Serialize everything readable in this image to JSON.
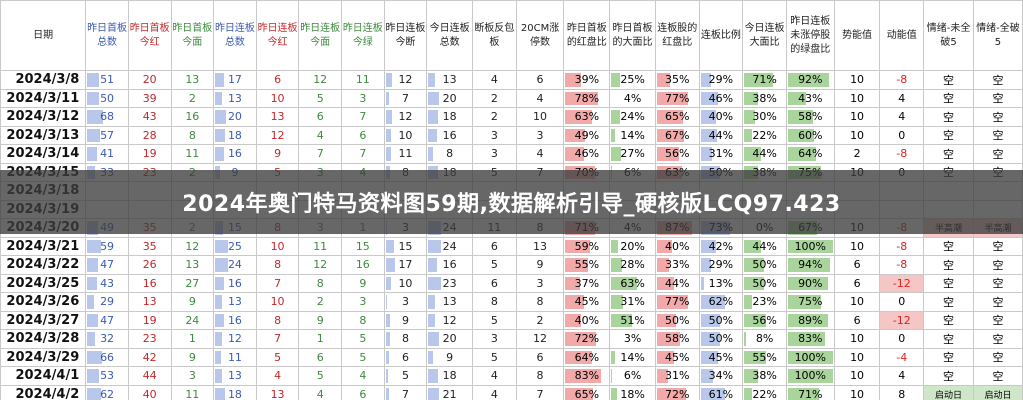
{
  "banner": {
    "title": "2024年奥门特马资料图59期,数据解析引导_硬核版LCQ97.423"
  },
  "colors": {
    "blue_text": "#3b5bb0",
    "red_text": "#c0282a",
    "green_text": "#3e8a3e",
    "blue_bar": "#b9c8ea",
    "red_bar": "#f2a9a9",
    "green_bar": "#a9d49c",
    "banner_bg": "#3c3c3c"
  },
  "headers": [
    "日期",
    "昨日首板总数",
    "昨日首板今红",
    "昨日首板今面",
    "昨日连板总数",
    "昨日连板今红",
    "昨日连板今面",
    "昨日连板今绿",
    "昨日连板今断",
    "今日连板总数",
    "断板反包板",
    "20CM涨停数",
    "昨日首板的红盘比",
    "昨日首板的大面比",
    "连板股的红盘比",
    "连板比例",
    "今日连板大面比",
    "昨日连板未涨停股的绿盘比",
    "势能值",
    "动能值",
    "情绪-未全破5",
    "情绪-全破5"
  ],
  "rows": [
    {
      "date": "2024/3/8",
      "v": [
        "51",
        "20",
        "13",
        "17",
        "6",
        "12",
        "11",
        "12",
        "13",
        "4",
        "6",
        "39%",
        "25%",
        "35%",
        "29%",
        "71%",
        "92%",
        "10",
        "-8",
        "空",
        "空"
      ],
      "p": [
        0.39,
        0.25,
        0.35,
        0.29,
        0.71,
        0.92
      ]
    },
    {
      "date": "2024/3/11",
      "v": [
        "50",
        "39",
        "2",
        "13",
        "10",
        "5",
        "3",
        "7",
        "20",
        "2",
        "4",
        "78%",
        "4%",
        "77%",
        "46%",
        "38%",
        "43%",
        "10",
        "4",
        "空",
        "空"
      ],
      "p": [
        0.78,
        0.04,
        0.77,
        0.46,
        0.38,
        0.43
      ]
    },
    {
      "date": "2024/3/12",
      "v": [
        "68",
        "43",
        "16",
        "20",
        "13",
        "6",
        "7",
        "12",
        "18",
        "2",
        "10",
        "63%",
        "24%",
        "65%",
        "40%",
        "30%",
        "58%",
        "10",
        "4",
        "空",
        "空"
      ],
      "p": [
        0.63,
        0.24,
        0.65,
        0.4,
        0.3,
        0.58
      ]
    },
    {
      "date": "2024/3/13",
      "v": [
        "57",
        "28",
        "8",
        "18",
        "12",
        "4",
        "6",
        "10",
        "16",
        "3",
        "3",
        "49%",
        "14%",
        "67%",
        "44%",
        "22%",
        "60%",
        "10",
        "0",
        "空",
        "空"
      ],
      "p": [
        0.49,
        0.14,
        0.67,
        0.44,
        0.22,
        0.6
      ]
    },
    {
      "date": "2024/3/14",
      "v": [
        "41",
        "19",
        "11",
        "16",
        "9",
        "7",
        "7",
        "11",
        "8",
        "3",
        "4",
        "46%",
        "27%",
        "56%",
        "31%",
        "44%",
        "64%",
        "2",
        "-8",
        "空",
        "空"
      ],
      "p": [
        0.46,
        0.27,
        0.56,
        0.31,
        0.44,
        0.64
      ]
    },
    {
      "date": "2024/3/15",
      "v": [
        "33",
        "23",
        "2",
        "9",
        "5",
        "3",
        "4",
        "8",
        "18",
        "5",
        "7",
        "70%",
        "6%",
        "63%",
        "50%",
        "38%",
        "75%",
        "10",
        "0",
        "空",
        "空"
      ],
      "p": [
        0.7,
        0.06,
        0.63,
        0.5,
        0.38,
        0.75
      ]
    },
    {
      "date": "2024/3/18",
      "v": [
        "",
        "",
        "",
        "",
        "",
        "",
        "",
        "",
        "",
        "",
        "",
        "",
        "",
        "",
        "",
        "",
        "",
        "",
        "",
        "",
        ""
      ],
      "p": [
        0,
        0,
        0,
        0,
        0,
        0
      ]
    },
    {
      "date": "2024/3/19",
      "v": [
        "",
        "",
        "",
        "",
        "",
        "",
        "",
        "",
        "",
        "",
        "",
        "",
        "",
        "",
        "",
        "",
        "",
        "",
        "",
        "",
        ""
      ],
      "p": [
        0,
        0,
        0,
        0,
        0,
        0
      ]
    },
    {
      "date": "2024/3/20",
      "v": [
        "49",
        "35",
        "2",
        "15",
        "8",
        "3",
        "1",
        "3",
        "24",
        "11",
        "8",
        "71%",
        "4%",
        "87%",
        "73%",
        "0%",
        "67%",
        "10",
        "-8",
        "半高潮",
        "半高潮"
      ],
      "p": [
        0.71,
        0.04,
        0.87,
        0.73,
        0.0,
        0.67
      ]
    },
    {
      "date": "2024/3/21",
      "v": [
        "59",
        "35",
        "12",
        "25",
        "10",
        "11",
        "15",
        "15",
        "24",
        "6",
        "13",
        "59%",
        "20%",
        "40%",
        "42%",
        "44%",
        "100%",
        "10",
        "-8",
        "空",
        "空"
      ],
      "p": [
        0.59,
        0.2,
        0.4,
        0.42,
        0.44,
        1.0
      ]
    },
    {
      "date": "2024/3/22",
      "v": [
        "47",
        "26",
        "13",
        "24",
        "8",
        "12",
        "16",
        "17",
        "16",
        "5",
        "9",
        "55%",
        "28%",
        "33%",
        "29%",
        "50%",
        "94%",
        "6",
        "-8",
        "空",
        "空"
      ],
      "p": [
        0.55,
        0.28,
        0.33,
        0.29,
        0.5,
        0.94
      ]
    },
    {
      "date": "2024/3/25",
      "v": [
        "43",
        "16",
        "27",
        "16",
        "7",
        "8",
        "9",
        "10",
        "23",
        "6",
        "3",
        "37%",
        "63%",
        "44%",
        "13%",
        "50%",
        "90%",
        "6",
        "-12",
        "空",
        "空"
      ],
      "p": [
        0.37,
        0.63,
        0.44,
        0.13,
        0.5,
        0.9
      ]
    },
    {
      "date": "2024/3/26",
      "v": [
        "29",
        "13",
        "9",
        "13",
        "10",
        "2",
        "3",
        "3",
        "13",
        "8",
        "8",
        "45%",
        "31%",
        "77%",
        "62%",
        "23%",
        "75%",
        "10",
        "0",
        "空",
        "空"
      ],
      "p": [
        0.45,
        0.31,
        0.77,
        0.62,
        0.23,
        0.75
      ]
    },
    {
      "date": "2024/3/27",
      "v": [
        "47",
        "19",
        "24",
        "16",
        "8",
        "9",
        "8",
        "9",
        "12",
        "5",
        "2",
        "40%",
        "51%",
        "50%",
        "50%",
        "56%",
        "89%",
        "6",
        "-12",
        "空",
        "空"
      ],
      "p": [
        0.4,
        0.51,
        0.5,
        0.5,
        0.56,
        0.89
      ]
    },
    {
      "date": "2024/3/28",
      "v": [
        "32",
        "23",
        "1",
        "12",
        "7",
        "1",
        "5",
        "8",
        "20",
        "3",
        "12",
        "72%",
        "3%",
        "58%",
        "50%",
        "8%",
        "83%",
        "10",
        "0",
        "空",
        "空"
      ],
      "p": [
        0.72,
        0.03,
        0.58,
        0.5,
        0.08,
        0.83
      ]
    },
    {
      "date": "2024/3/29",
      "v": [
        "66",
        "42",
        "9",
        "11",
        "5",
        "6",
        "5",
        "6",
        "9",
        "5",
        "6",
        "64%",
        "14%",
        "45%",
        "45%",
        "55%",
        "100%",
        "10",
        "-4",
        "空",
        "空"
      ],
      "p": [
        0.64,
        0.14,
        0.45,
        0.45,
        0.55,
        1.0
      ]
    },
    {
      "date": "2024/4/1",
      "v": [
        "53",
        "44",
        "3",
        "13",
        "4",
        "5",
        "4",
        "5",
        "18",
        "4",
        "8",
        "83%",
        "6%",
        "31%",
        "34%",
        "38%",
        "100%",
        "10",
        "4",
        "空",
        "空"
      ],
      "p": [
        0.83,
        0.06,
        0.31,
        0.34,
        0.38,
        1.0
      ]
    },
    {
      "date": "2024/4/2",
      "v": [
        "62",
        "40",
        "11",
        "18",
        "13",
        "4",
        "6",
        "7",
        "21",
        "4",
        "7",
        "65%",
        "18%",
        "72%",
        "61%",
        "22%",
        "71%",
        "10",
        "8",
        "启动日",
        "启动日"
      ],
      "p": [
        0.65,
        0.18,
        0.72,
        0.61,
        0.22,
        0.71
      ]
    }
  ]
}
